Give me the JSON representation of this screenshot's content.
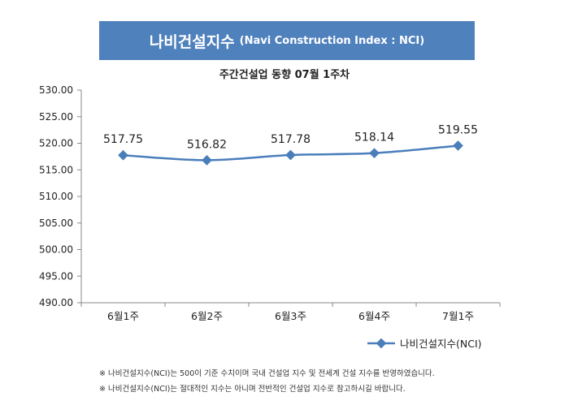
{
  "header": {
    "title_kr": "나비건설지수",
    "title_en": "(Navi Construction Index : NCI)"
  },
  "chart_data": {
    "type": "line",
    "title": "주간건설업 동향 07월 1주차",
    "categories": [
      "6월1주",
      "6월2주",
      "6월3주",
      "6월4주",
      "7월1주"
    ],
    "series": [
      {
        "name": "나비건설지수(NCI)",
        "values": [
          517.75,
          516.82,
          517.78,
          518.14,
          519.55
        ],
        "labels": [
          "517.75",
          "516.82",
          "517.78",
          "518.14",
          "519.55"
        ]
      }
    ],
    "yticks": [
      "530.00",
      "525.00",
      "520.00",
      "515.00",
      "510.00",
      "505.00",
      "500.00",
      "495.00",
      "490.00"
    ],
    "ylim": [
      490,
      530
    ],
    "grid": false,
    "legend_position": "bottom-right",
    "line_color": "#4a7ebb"
  },
  "footnotes": [
    "※ 나비건설지수(NCI)는 500이 기준 수치이며 국내 건설업 지수 및 전세계 건설 지수를 반영하였습니다.",
    "※ 나비건설지수(NCI)는 절대적인 지수는 아니며 전반적인 건설업 지수로 참고하시길 바랍니다."
  ]
}
